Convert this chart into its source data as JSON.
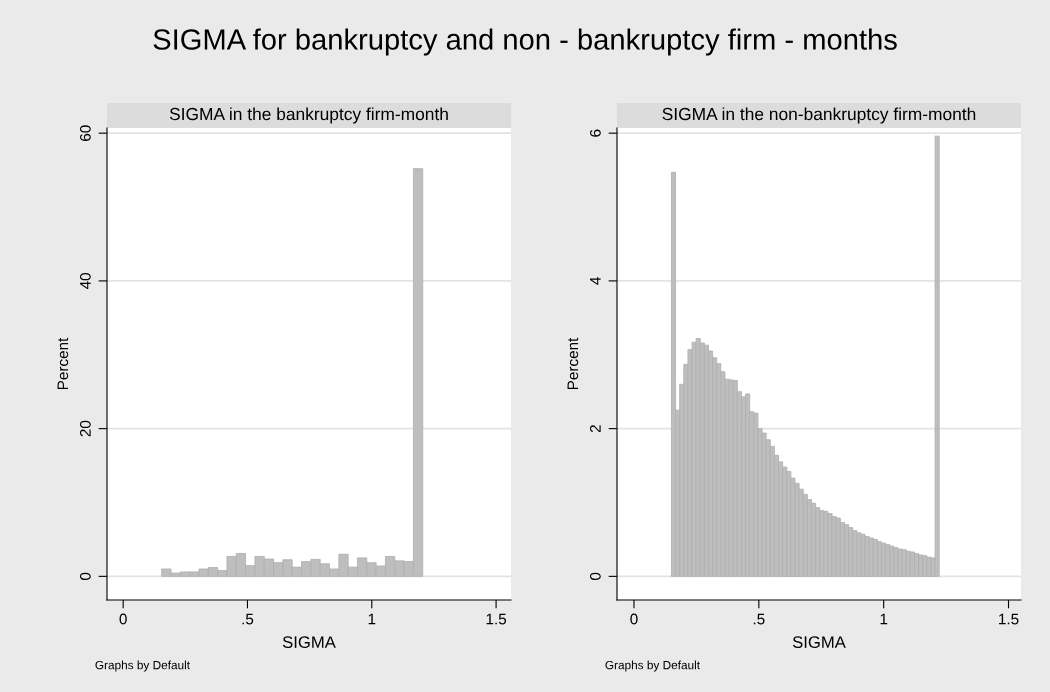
{
  "chart_data": [
    {
      "type": "histogram",
      "title": "SIGMA for bankruptcy and non - bankruptcy firm - months",
      "subtitle": "SIGMA in the bankruptcy firm-month",
      "xlabel": "SIGMA",
      "ylabel": "Percent",
      "color": "#bebebe",
      "grid": "y",
      "bins": [
        0.155,
        0.1925,
        0.23,
        0.2675,
        0.305,
        0.3425,
        0.38,
        0.4175,
        0.455,
        0.4925,
        0.53,
        0.5675,
        0.605,
        0.6425,
        0.68,
        0.7175,
        0.755,
        0.7925,
        0.83,
        0.8675,
        0.905,
        0.9425,
        0.98,
        1.0175,
        1.055,
        1.0925,
        1.13,
        1.1675,
        1.205
      ],
      "values": [
        1.0,
        0.45,
        0.6,
        0.6,
        1.0,
        1.2,
        0.8,
        2.7,
        3.1,
        1.45,
        2.7,
        2.35,
        1.85,
        2.25,
        1.25,
        2.0,
        2.3,
        1.7,
        1.0,
        3.0,
        1.25,
        2.5,
        1.85,
        1.4,
        2.7,
        2.1,
        2.0,
        55.2
      ],
      "xlim": [
        -0.065,
        1.56
      ],
      "ylim": [
        -3.2,
        60.7
      ],
      "xticks": [
        0,
        {
          "value": 0.5,
          "label": ".5"
        },
        1,
        1.5
      ],
      "yticks": [
        0,
        20,
        40,
        60
      ],
      "annotations": [
        "Graphs by Default"
      ]
    },
    {
      "type": "histogram",
      "subtitle": "SIGMA in the non-bankruptcy firm-month",
      "xlabel": "SIGMA",
      "ylabel": "Percent",
      "color": "#bebebe",
      "grid": "y",
      "bins": [
        0.15,
        0.1665,
        0.183,
        0.1995,
        0.216,
        0.2325,
        0.249,
        0.2655,
        0.282,
        0.2985,
        0.315,
        0.3315,
        0.348,
        0.3645,
        0.381,
        0.3975,
        0.414,
        0.4305,
        0.447,
        0.4635,
        0.48,
        0.4965,
        0.513,
        0.5295,
        0.546,
        0.5625,
        0.579,
        0.5955,
        0.612,
        0.6285,
        0.645,
        0.6615,
        0.678,
        0.6945,
        0.711,
        0.7275,
        0.744,
        0.7605,
        0.777,
        0.7935,
        0.81,
        0.8265,
        0.843,
        0.8595,
        0.876,
        0.8925,
        0.909,
        0.9255,
        0.942,
        0.9585,
        0.975,
        0.9915,
        1.008,
        1.0245,
        1.041,
        1.0575,
        1.074,
        1.0905,
        1.107,
        1.1235,
        1.14,
        1.1565,
        1.173,
        1.1895,
        1.206,
        1.2225
      ],
      "values": [
        5.47,
        2.25,
        2.6,
        2.87,
        3.07,
        3.17,
        3.22,
        3.16,
        3.13,
        3.05,
        2.96,
        2.88,
        2.77,
        2.67,
        2.66,
        2.65,
        2.5,
        2.43,
        2.47,
        2.23,
        2.21,
        2.0,
        1.94,
        1.85,
        1.76,
        1.64,
        1.55,
        1.48,
        1.42,
        1.33,
        1.26,
        1.18,
        1.11,
        1.04,
        0.99,
        0.93,
        0.89,
        0.88,
        0.85,
        0.81,
        0.79,
        0.73,
        0.7,
        0.66,
        0.62,
        0.59,
        0.57,
        0.54,
        0.52,
        0.5,
        0.47,
        0.45,
        0.43,
        0.41,
        0.39,
        0.37,
        0.36,
        0.34,
        0.33,
        0.31,
        0.29,
        0.28,
        0.26,
        0.25,
        5.96
      ],
      "xlim": [
        -0.068,
        1.55
      ],
      "ylim": [
        -0.32,
        6.07
      ],
      "xticks": [
        0,
        {
          "value": 0.5,
          "label": ".5"
        },
        1,
        1.5
      ],
      "yticks": [
        0,
        2,
        4,
        6
      ],
      "annotations": [
        "Graphs by Default"
      ]
    }
  ]
}
